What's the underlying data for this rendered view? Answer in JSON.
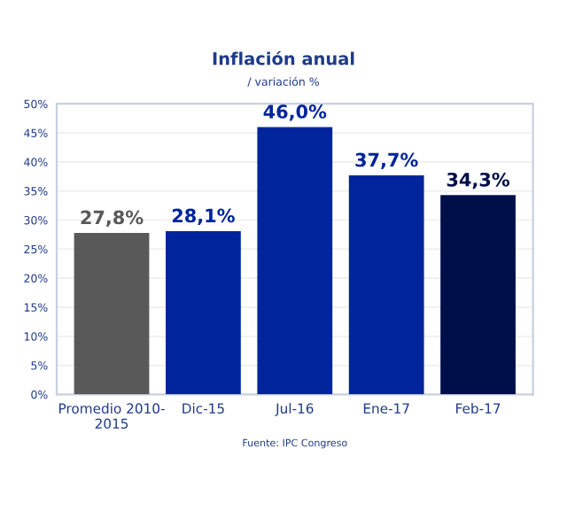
{
  "chart_data": {
    "type": "bar",
    "title": "Inflación anual",
    "subtitle": "/ variación %",
    "categories": [
      "Promedio 2010-\n2015",
      "Dic-15",
      "Jul-16",
      "Ene-17",
      "Feb-17"
    ],
    "values": [
      27.8,
      28.1,
      46.0,
      37.7,
      34.3
    ],
    "colors": [
      "#595959",
      "#00249c",
      "#00249c",
      "#00249c",
      "#000f4a"
    ],
    "value_labels": [
      "27,8%",
      "28,1%",
      "46,0%",
      "37,7%",
      "34,3%"
    ],
    "ylim": [
      0,
      50
    ],
    "yticks": [
      {
        "value": 0,
        "label": "0%"
      },
      {
        "value": 5,
        "label": "5%"
      },
      {
        "value": 10,
        "label": "10%"
      },
      {
        "value": 15,
        "label": "15%"
      },
      {
        "value": 20,
        "label": "20%"
      },
      {
        "value": 25,
        "label": "25%"
      },
      {
        "value": 30,
        "label": "30%"
      },
      {
        "value": 35,
        "label": "35%"
      },
      {
        "value": 40,
        "label": "40%"
      },
      {
        "value": 45,
        "label": "45%"
      },
      {
        "value": 50,
        "label": "50%"
      }
    ],
    "grid": "y",
    "annotations": [
      "Fuente: IPC Congreso"
    ]
  }
}
